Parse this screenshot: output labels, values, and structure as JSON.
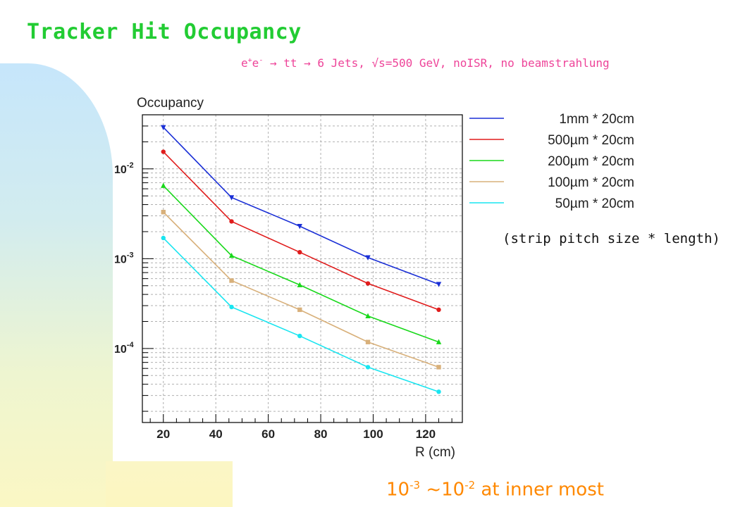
{
  "page": {
    "title": "Tracker Hit Occupancy",
    "subtitle": {
      "part1": "e",
      "sup1": "+",
      "part2": "e",
      "sup2": "-",
      "rest": " → tt → 6 Jets, √s=500 GeV, noISR, no beamstrahlung"
    },
    "legend_note": "(strip pitch size * length)",
    "bottom_note": {
      "base1": "10",
      "exp1": "-3",
      "mid": " ~10",
      "exp2": "-2",
      "rest": " at inner most"
    }
  },
  "colors": {
    "title": "#22cc33",
    "subtitle": "#ee4499",
    "bottom_note": "#ff8800"
  },
  "chart_data": {
    "type": "line",
    "title": "",
    "ylabel": "Occupancy",
    "xlabel": "R  (cm)",
    "x": [
      20,
      46,
      72,
      98,
      125
    ],
    "xlim": [
      12,
      134
    ],
    "ylim": [
      1.5e-05,
      0.04
    ],
    "yscale": "log",
    "grid": true,
    "legend_position": "right",
    "x_ticks": [
      20,
      40,
      60,
      80,
      100,
      120
    ],
    "y_tick_labels": [
      {
        "value": 0.01,
        "base": "10",
        "exp": "-2"
      },
      {
        "value": 0.001,
        "base": "10",
        "exp": "-3"
      },
      {
        "value": 0.0001,
        "base": "10",
        "exp": "-4"
      }
    ],
    "series": [
      {
        "name": "1mm * 20cm",
        "color": "#1a2fd6",
        "marker": "triangle-down",
        "values": [
          0.029,
          0.0048,
          0.0023,
          0.00103,
          0.00052
        ]
      },
      {
        "name": "500µm * 20cm",
        "color": "#e01c1c",
        "marker": "circle",
        "values": [
          0.0155,
          0.0026,
          0.00118,
          0.00053,
          0.00027
        ]
      },
      {
        "name": "200µm * 20cm",
        "color": "#18d81a",
        "marker": "triangle-up",
        "values": [
          0.0065,
          0.00108,
          0.00051,
          0.00023,
          0.000118
        ]
      },
      {
        "name": "100µm * 20cm",
        "color": "#d8b07a",
        "marker": "square",
        "values": [
          0.0033,
          0.00057,
          0.00027,
          0.000118,
          6.2e-05
        ]
      },
      {
        "name": "50µm * 20cm",
        "color": "#19e5f0",
        "marker": "circle",
        "values": [
          0.0017,
          0.00029,
          0.000138,
          6.2e-05,
          3.3e-05
        ]
      }
    ]
  }
}
